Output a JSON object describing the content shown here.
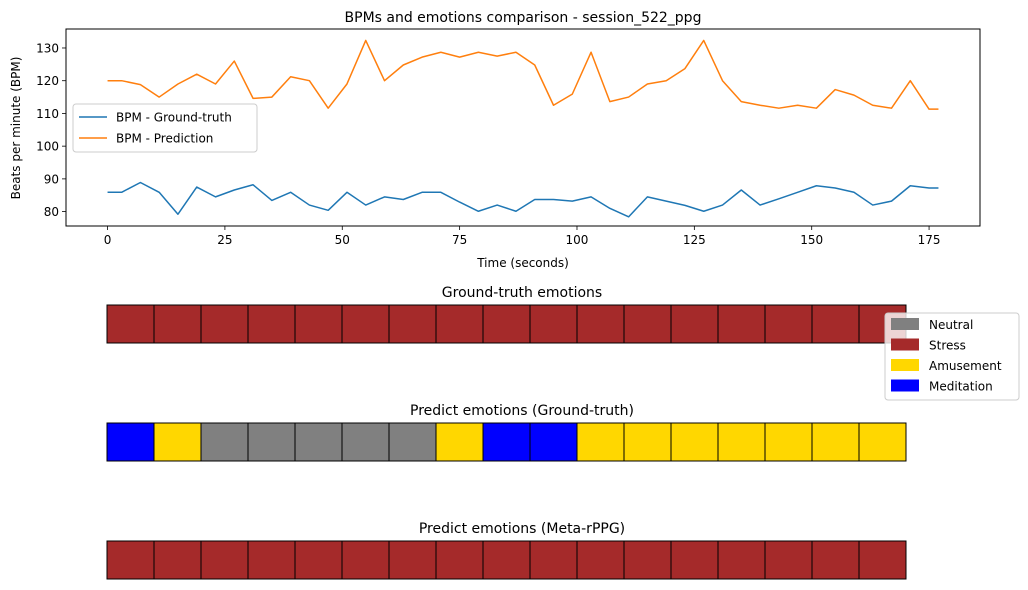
{
  "chart_data": [
    {
      "type": "line",
      "title": "BPMs and emotions comparison - session_522_ppg",
      "xlabel": "Time (seconds)",
      "ylabel": "Beats per minute (BPM)",
      "xlim": [
        -8.85,
        185.85
      ],
      "ylim": [
        75.6,
        135.8
      ],
      "xticks": [
        "0",
        "25",
        "50",
        "75",
        "100",
        "125",
        "150",
        "175"
      ],
      "yticks": [
        "80",
        "90",
        "100",
        "110",
        "120",
        "130"
      ],
      "grid": false,
      "legend_position": "center-left",
      "x": [
        0,
        3,
        7,
        11,
        15,
        19,
        23,
        27,
        31,
        35,
        39,
        43,
        47,
        51,
        55,
        59,
        63,
        67,
        71,
        75,
        79,
        83,
        87,
        91,
        95,
        99,
        103,
        107,
        111,
        115,
        119,
        123,
        127,
        131,
        135,
        139,
        143,
        147,
        151,
        155,
        159,
        163,
        167,
        171,
        175,
        177
      ],
      "series": [
        {
          "name": "BPM - Ground-truth",
          "color": "#1f77b4",
          "values": [
            85.9,
            85.9,
            88.9,
            85.9,
            79.2,
            87.5,
            84.5,
            86.6,
            88.2,
            83.4,
            85.9,
            82.0,
            80.4,
            85.9,
            82.0,
            84.5,
            83.7,
            85.9,
            85.9,
            82.9,
            80.1,
            82.0,
            80.1,
            83.7,
            83.7,
            83.2,
            84.5,
            81.0,
            78.4,
            84.5,
            83.2,
            81.9,
            80.1,
            82.0,
            86.6,
            82.0,
            83.9,
            85.9,
            87.9,
            87.2,
            85.9,
            82.0,
            83.2,
            87.9,
            87.2,
            87.2
          ]
        },
        {
          "name": "BPM - Prediction",
          "color": "#ff7f0e",
          "values": [
            120.0,
            120.0,
            118.8,
            115.0,
            119.0,
            122.0,
            119.0,
            126.0,
            114.6,
            115.0,
            121.2,
            120.0,
            111.6,
            119.0,
            132.3,
            120.0,
            124.8,
            127.2,
            128.7,
            127.2,
            128.7,
            127.5,
            128.7,
            124.8,
            112.5,
            115.9,
            128.7,
            113.6,
            115.0,
            119.0,
            120.0,
            123.7,
            132.3,
            120.0,
            113.6,
            112.5,
            111.6,
            112.5,
            111.6,
            117.3,
            115.6,
            112.5,
            111.6,
            120.0,
            111.3,
            111.3
          ]
        }
      ]
    },
    {
      "type": "heatmap",
      "title": "Ground-truth emotions",
      "categories": [
        "Stress",
        "Stress",
        "Stress",
        "Stress",
        "Stress",
        "Stress",
        "Stress",
        "Stress",
        "Stress",
        "Stress",
        "Stress",
        "Stress",
        "Stress",
        "Stress",
        "Stress",
        "Stress",
        "Stress"
      ]
    },
    {
      "type": "heatmap",
      "title": "Predict emotions (Ground-truth)",
      "categories": [
        "Meditation",
        "Amusement",
        "Neutral",
        "Neutral",
        "Neutral",
        "Neutral",
        "Neutral",
        "Amusement",
        "Meditation",
        "Meditation",
        "Amusement",
        "Amusement",
        "Amusement",
        "Amusement",
        "Amusement",
        "Amusement",
        "Amusement"
      ]
    },
    {
      "type": "heatmap",
      "title": "Predict emotions (Meta-rPPG)",
      "categories": [
        "Stress",
        "Stress",
        "Stress",
        "Stress",
        "Stress",
        "Stress",
        "Stress",
        "Stress",
        "Stress",
        "Stress",
        "Stress",
        "Stress",
        "Stress",
        "Stress",
        "Stress",
        "Stress",
        "Stress"
      ]
    }
  ],
  "emotion_legend": [
    {
      "name": "Neutral",
      "color": "#808080"
    },
    {
      "name": "Stress",
      "color": "#a52a2a"
    },
    {
      "name": "Amusement",
      "color": "#ffd700"
    },
    {
      "name": "Meditation",
      "color": "#0000ff"
    }
  ]
}
